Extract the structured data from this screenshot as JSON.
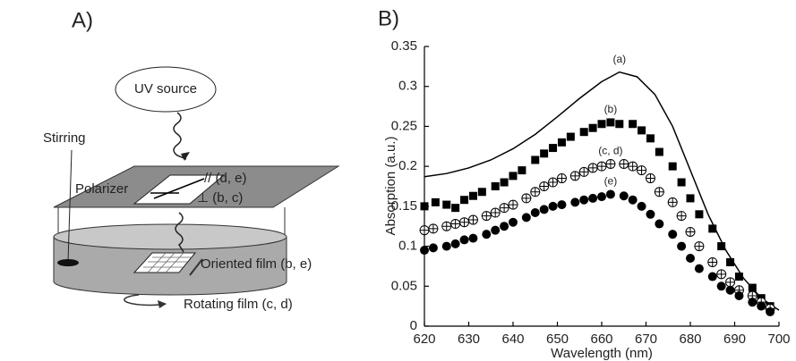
{
  "diagram": {
    "panel_label": "A)",
    "source": "UV source",
    "stirring": "Stirring",
    "polarizer": "Polarizer",
    "parallel": "// (d, e)",
    "perpendicular": "⊥ (b, c)",
    "oriented": "Oriented film (b, e)",
    "rotating": "Rotating film (c, d)"
  },
  "chart_data": {
    "type": "scatter",
    "panel_label": "B)",
    "x_label": "Wavelength (nm)",
    "y_label": "Absorption (a.u.)",
    "xlim": [
      620,
      700
    ],
    "xticks": [
      620,
      630,
      640,
      650,
      660,
      670,
      680,
      690,
      700
    ],
    "ylim": [
      0,
      0.35
    ],
    "yticks": [
      0,
      0.05,
      0.1,
      0.15,
      0.2,
      0.25,
      0.3,
      0.35
    ],
    "grid": false,
    "series": [
      {
        "name": "(a)",
        "marker": "line",
        "color": "#000000",
        "x": [
          620,
          625,
          630,
          635,
          640,
          645,
          650,
          655,
          660,
          664,
          668,
          672,
          676,
          680,
          684,
          688,
          692,
          696,
          700
        ],
        "values": [
          0.187,
          0.191,
          0.198,
          0.208,
          0.222,
          0.24,
          0.262,
          0.285,
          0.306,
          0.318,
          0.312,
          0.29,
          0.25,
          0.195,
          0.14,
          0.095,
          0.06,
          0.035,
          0.02
        ]
      },
      {
        "name": "(b)",
        "marker": "square",
        "color": "#000000",
        "x": [
          620,
          622.5,
          625,
          627,
          629,
          631,
          633,
          636,
          638,
          640,
          642,
          645,
          647,
          649,
          651,
          653,
          656,
          658,
          660,
          662,
          664,
          667,
          669,
          671,
          673,
          676,
          678,
          680,
          682,
          685,
          687,
          689,
          691,
          694,
          696,
          698
        ],
        "values": [
          0.15,
          0.155,
          0.152,
          0.148,
          0.158,
          0.163,
          0.168,
          0.175,
          0.18,
          0.188,
          0.195,
          0.208,
          0.216,
          0.223,
          0.23,
          0.237,
          0.243,
          0.248,
          0.253,
          0.255,
          0.253,
          0.253,
          0.245,
          0.235,
          0.218,
          0.2,
          0.18,
          0.16,
          0.14,
          0.122,
          0.1,
          0.08,
          0.062,
          0.048,
          0.035,
          0.025
        ]
      },
      {
        "name": "(c, d)",
        "marker": "circle-cross",
        "color": "#000000",
        "x": [
          620,
          622,
          625,
          627,
          629,
          631,
          634,
          636,
          638,
          640,
          643,
          645,
          647,
          649,
          651,
          654,
          656,
          658,
          660,
          662,
          665,
          667,
          669,
          671,
          673,
          676,
          678,
          680,
          682,
          685,
          687,
          689,
          691,
          694,
          696,
          698
        ],
        "values": [
          0.12,
          0.122,
          0.125,
          0.128,
          0.13,
          0.133,
          0.138,
          0.142,
          0.148,
          0.152,
          0.16,
          0.168,
          0.175,
          0.18,
          0.185,
          0.188,
          0.193,
          0.198,
          0.2,
          0.203,
          0.203,
          0.2,
          0.195,
          0.185,
          0.168,
          0.155,
          0.138,
          0.118,
          0.1,
          0.08,
          0.065,
          0.055,
          0.045,
          0.038,
          0.03,
          0.022
        ]
      },
      {
        "name": "(e)",
        "marker": "circle",
        "color": "#000000",
        "x": [
          620,
          622,
          625,
          627,
          629,
          631,
          634,
          636,
          638,
          640,
          643,
          645,
          647,
          649,
          651,
          654,
          656,
          658,
          660,
          662,
          665,
          667,
          669,
          671,
          673,
          676,
          678,
          680,
          682,
          685,
          687,
          689,
          691,
          694,
          696,
          698
        ],
        "values": [
          0.095,
          0.098,
          0.1,
          0.103,
          0.108,
          0.11,
          0.115,
          0.12,
          0.125,
          0.13,
          0.136,
          0.142,
          0.146,
          0.15,
          0.152,
          0.155,
          0.158,
          0.16,
          0.162,
          0.165,
          0.163,
          0.158,
          0.15,
          0.14,
          0.128,
          0.115,
          0.1,
          0.085,
          0.072,
          0.062,
          0.05,
          0.045,
          0.038,
          0.03,
          0.025,
          0.018
        ]
      }
    ]
  }
}
